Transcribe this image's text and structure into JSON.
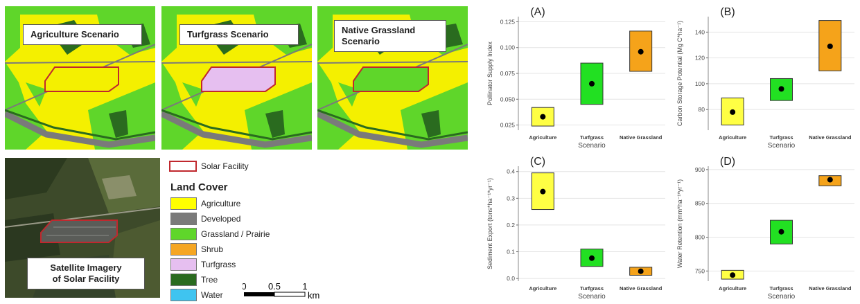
{
  "maps": {
    "agriculture_label": "Agriculture Scenario",
    "turfgrass_label": "Turfgrass Scenario",
    "native_label_line1": "Native Grassland",
    "native_label_line2": "Scenario",
    "satellite_label_line1": "Satellite Imagery",
    "satellite_label_line2": "of Solar Facility"
  },
  "legend": {
    "solar_facility": "Solar Facility",
    "title": "Land Cover",
    "items": [
      {
        "label": "Agriculture",
        "color": "#ffff00"
      },
      {
        "label": "Developed",
        "color": "#7a7a7a"
      },
      {
        "label": "Grassland / Prairie",
        "color": "#5fd62a"
      },
      {
        "label": "Shrub",
        "color": "#f5a623"
      },
      {
        "label": "Turfgrass",
        "color": "#e6bff0"
      },
      {
        "label": "Tree",
        "color": "#2a6b1f"
      },
      {
        "label": "Water",
        "color": "#3fc4f0"
      }
    ]
  },
  "scale": {
    "ticks": [
      "0",
      "0.5",
      "1"
    ],
    "unit": "km"
  },
  "colors": {
    "agriculture": "#ffff44",
    "turfgrass": "#22e022",
    "native": "#f5a31a",
    "solar_outline": "#c0282e"
  },
  "chart_data": [
    {
      "panel": "(A)",
      "type": "box",
      "ylabel": "Pollinator Supply Index",
      "xlabel": "Scenario",
      "categories": [
        "Agriculture",
        "Turfgrass",
        "Native Grassland"
      ],
      "ylim": [
        0.02,
        0.13
      ],
      "yticks": [
        "0.025",
        "0.050",
        "0.075",
        "0.100",
        "0.125"
      ],
      "ytick_values": [
        0.025,
        0.05,
        0.075,
        0.1,
        0.125
      ],
      "low": [
        0.024,
        0.045,
        0.077
      ],
      "high": [
        0.042,
        0.085,
        0.116
      ],
      "mean": [
        0.033,
        0.065,
        0.096
      ]
    },
    {
      "panel": "(B)",
      "type": "box",
      "ylabel": "Carbon Storage Potential (Mg C*ha⁻¹)",
      "xlabel": "Scenario",
      "categories": [
        "Agriculture",
        "Turfgrass",
        "Native Grassland"
      ],
      "ylim": [
        64,
        152
      ],
      "yticks": [
        "80",
        "100",
        "120",
        "140"
      ],
      "ytick_values": [
        80,
        100,
        120,
        140
      ],
      "low": [
        68,
        87,
        110
      ],
      "high": [
        89,
        104,
        149
      ],
      "mean": [
        78,
        96,
        129
      ]
    },
    {
      "panel": "(C)",
      "type": "box",
      "ylabel": "Sediment Export (tons*ha⁻¹*yr⁻¹)",
      "xlabel": "Scenario",
      "categories": [
        "Agriculture",
        "Turfgrass",
        "Native Grassland"
      ],
      "ylim": [
        -0.01,
        0.42
      ],
      "yticks": [
        "0.0",
        "0.1",
        "0.2",
        "0.3",
        "0.4"
      ],
      "ytick_values": [
        0,
        0.1,
        0.2,
        0.3,
        0.4
      ],
      "low": [
        0.258,
        0.045,
        0.012
      ],
      "high": [
        0.395,
        0.11,
        0.042
      ],
      "mean": [
        0.325,
        0.076,
        0.027
      ]
    },
    {
      "panel": "(D)",
      "type": "box",
      "ylabel": "Water Retention (mm*ha⁻¹*yr⁻¹)",
      "xlabel": "Scenario",
      "categories": [
        "Agriculture",
        "Turfgrass",
        "Native Grassland"
      ],
      "ylim": [
        735,
        905
      ],
      "yticks": [
        "750",
        "800",
        "850",
        "900"
      ],
      "ytick_values": [
        750,
        800,
        850,
        900
      ],
      "low": [
        738,
        790,
        876
      ],
      "high": [
        751,
        825,
        891
      ],
      "mean": [
        744,
        808,
        885
      ]
    }
  ]
}
